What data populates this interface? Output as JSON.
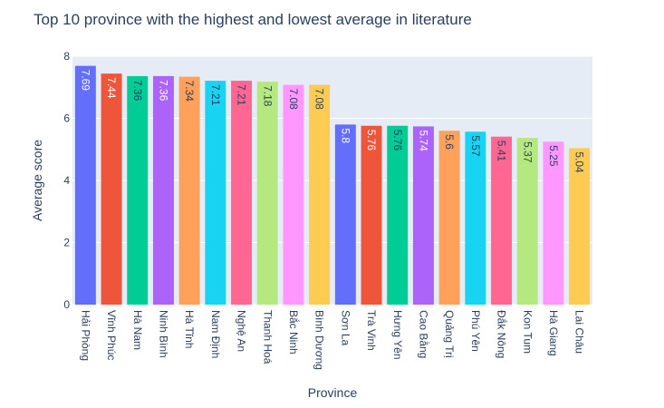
{
  "chart_data": {
    "type": "bar",
    "title": "Top 10 province with the highest and lowest average in literature",
    "xlabel": "Province",
    "ylabel": "Average score",
    "ylim": [
      0,
      8
    ],
    "y_ticks": [
      0,
      2,
      4,
      6,
      8
    ],
    "grid": true,
    "categories": [
      "Hải Phòng",
      "Vĩnh Phúc",
      "Hà Nam",
      "Ninh Bình",
      "Hà Tĩnh",
      "Nam Định",
      "Nghệ An",
      "Thanh Hoá",
      "Bắc Ninh",
      "Bình Dương",
      "Sơn La",
      "Trà Vinh",
      "Hưng Yên",
      "Cao Bằng",
      "Quảng Trị",
      "Phú Yên",
      "Đắk Nông",
      "Kon Tum",
      "Hà Giang",
      "Lai Châu"
    ],
    "values": [
      7.69,
      7.44,
      7.36,
      7.36,
      7.34,
      7.21,
      7.21,
      7.18,
      7.08,
      7.08,
      5.8,
      5.76,
      5.76,
      5.74,
      5.6,
      5.57,
      5.41,
      5.37,
      5.25,
      5.04
    ],
    "value_labels": [
      "7.69",
      "7.44",
      "7.36",
      "7.36",
      "7.34",
      "7.21",
      "7.21",
      "7.18",
      "7.08",
      "7.08",
      "5.8",
      "5.76",
      "5.76",
      "5.74",
      "5.6",
      "5.57",
      "5.41",
      "5.37",
      "5.25",
      "5.04"
    ],
    "colors": [
      "#636efa",
      "#EF553B",
      "#00cc96",
      "#ab63fa",
      "#FFA15A",
      "#19d3f3",
      "#FF6692",
      "#B6E880",
      "#FF97FF",
      "#FECB52",
      "#636efa",
      "#EF553B",
      "#00cc96",
      "#ab63fa",
      "#FFA15A",
      "#19d3f3",
      "#FF6692",
      "#B6E880",
      "#FF97FF",
      "#FECB52"
    ],
    "plot_bg": "#E5ECF6",
    "grid_color": "#ffffff"
  }
}
